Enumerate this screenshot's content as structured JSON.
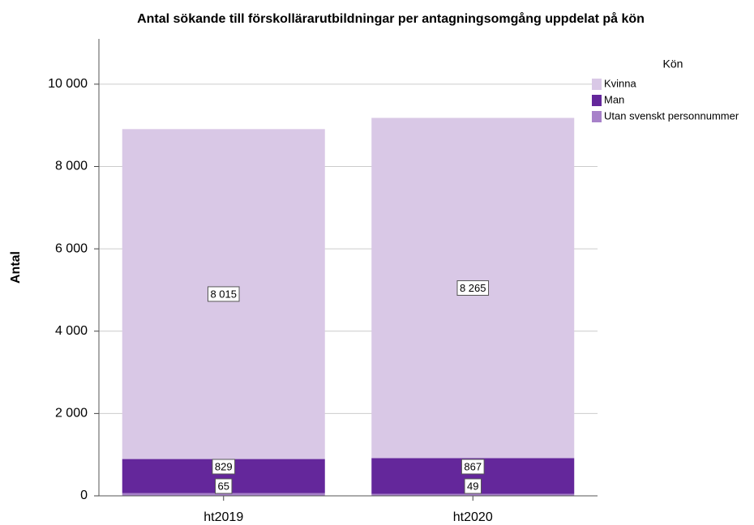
{
  "chart_data": {
    "type": "stacked_bar",
    "title": "Antal sökande till förskollärarutbildningar per antagningsomgång uppdelat på kön",
    "y_label": "Antal",
    "legend_title": "Kön",
    "categories": [
      "ht2019",
      "ht2020"
    ],
    "series": [
      {
        "name": "Utan svenskt personnummer",
        "color": "#a781c9",
        "values": [
          65,
          49
        ]
      },
      {
        "name": "Man",
        "color": "#64279b",
        "values": [
          829,
          867
        ]
      },
      {
        "name": "Kvinna",
        "color": "#d9c8e6",
        "values": [
          8015,
          8265
        ],
        "value_labels": [
          "8 015",
          "8 265"
        ]
      }
    ],
    "ylim": [
      0,
      11100
    ],
    "yticks": [
      0,
      {
        "value": 2000,
        "label": "2 000"
      },
      {
        "value": 4000,
        "label": "4 000"
      },
      {
        "value": 6000,
        "label": "6 000"
      },
      {
        "value": 8000,
        "label": "8 000"
      },
      {
        "value": 10000,
        "label": "10 000"
      }
    ],
    "grid": true,
    "legend": "top-right"
  }
}
